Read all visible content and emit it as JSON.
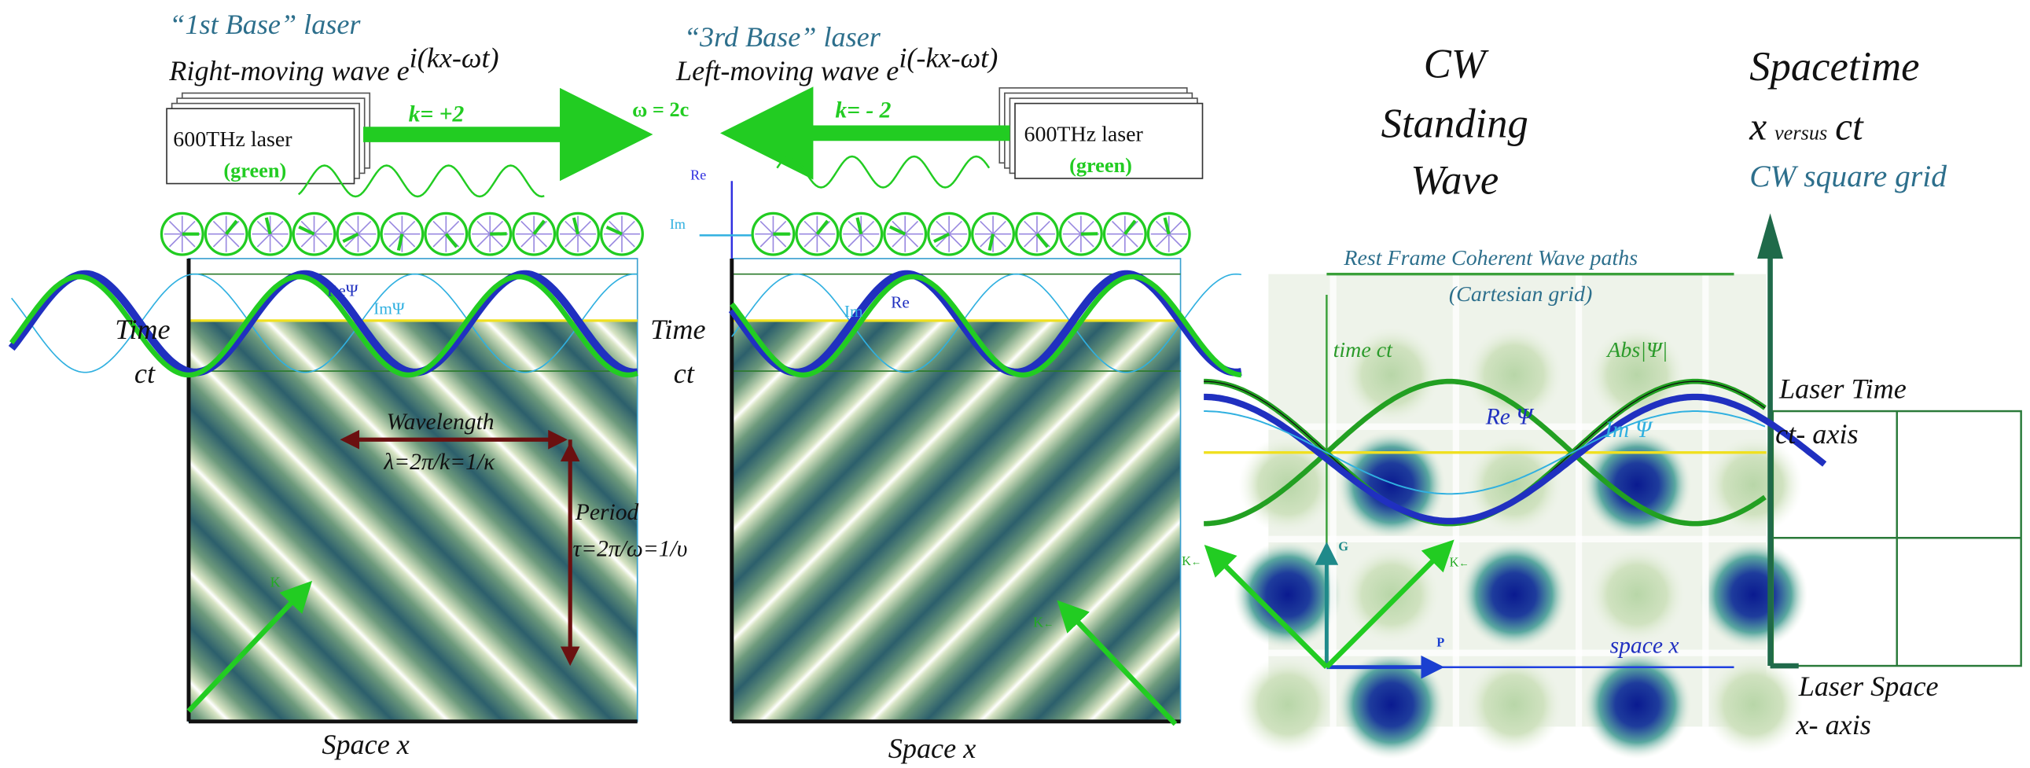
{
  "left": {
    "heading": "“1st Base” laser",
    "wave": "Right-moving wave e",
    "exponent": "i(kx-ωt)",
    "laser": "600THz laser",
    "color": "(green)",
    "k": "k= +2",
    "re_psi": "ReΨ",
    "im_psi": "ImΨ",
    "time": "Time",
    "ct": "ct",
    "wavelength": "Wavelength",
    "lambda": "λ=2π/k=1/κ",
    "period": "Period",
    "tau": "τ=2π/ω=1/υ",
    "kappa": "K",
    "space": "Space x"
  },
  "center": {
    "omega": "ω = 2c"
  },
  "right": {
    "heading": "“3rd Base” laser",
    "wave": "Left-moving wave e",
    "exponent": "i(-kx-ωt)",
    "laser": "600THz laser",
    "color": "(green)",
    "k": "k= - 2",
    "re_axis": "Re",
    "im_axis": "Im",
    "im_psi": "Im",
    "re_psi": "Re",
    "time": "Time",
    "ct": "ct",
    "kappa": "K",
    "kappa_arrow": "←",
    "space": "Space x"
  },
  "standing": {
    "title": [
      "CW",
      "Standing",
      "Wave"
    ],
    "paths": "Rest Frame Coherent Wave paths",
    "grid": "(Cartesian grid)",
    "time": "time ct",
    "abs": "Abs|Ψ|",
    "re": "Re Ψ",
    "im": "Im Ψ",
    "g": "G",
    "k_left": "K",
    "k_right": "K",
    "arrow": "←",
    "p": "P",
    "space": "space x"
  },
  "spacetime": {
    "title": "Spacetime",
    "x": "x",
    "versus": "versus",
    "ct": "ct",
    "grid": "CW square grid",
    "laser_time": "Laser Time",
    "ct_axis": "ct- axis",
    "laser_space": "Laser Space",
    "x_axis": "x- axis"
  }
}
